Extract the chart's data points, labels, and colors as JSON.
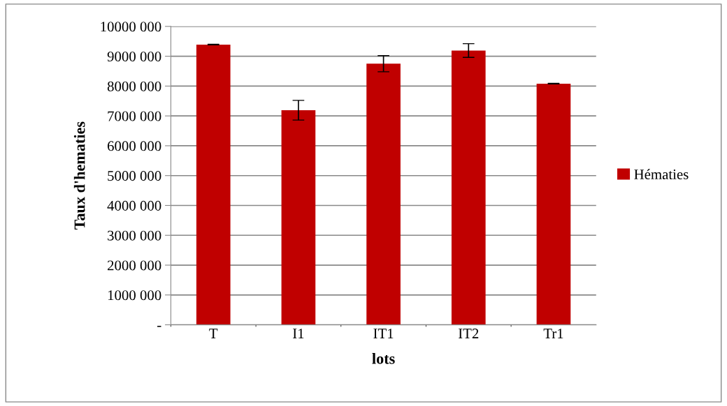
{
  "chart_data": {
    "type": "bar",
    "xlabel": "lots",
    "ylabel": "Taux d'hematies",
    "categories": [
      "T",
      "I1",
      "IT1",
      "IT2",
      "Tr1"
    ],
    "series": [
      {
        "name": "Hématies",
        "color": "#c00000",
        "values": [
          9390000,
          7190000,
          8750000,
          9190000,
          8080000
        ],
        "errors": [
          10000,
          330000,
          270000,
          230000,
          10000
        ]
      }
    ],
    "ylim": [
      0,
      10000000
    ],
    "yticks": [
      {
        "value": 0,
        "label": "-"
      },
      {
        "value": 1000000,
        "label": "1000 000"
      },
      {
        "value": 2000000,
        "label": "2000 000"
      },
      {
        "value": 3000000,
        "label": "3000 000"
      },
      {
        "value": 4000000,
        "label": "4000 000"
      },
      {
        "value": 5000000,
        "label": "5000 000"
      },
      {
        "value": 6000000,
        "label": "6000 000"
      },
      {
        "value": 7000000,
        "label": "7000 000"
      },
      {
        "value": 8000000,
        "label": "8000 000"
      },
      {
        "value": 9000000,
        "label": "9000 000"
      },
      {
        "value": 10000000,
        "label": "10000 000"
      }
    ],
    "grid": "y",
    "legend": "right"
  }
}
